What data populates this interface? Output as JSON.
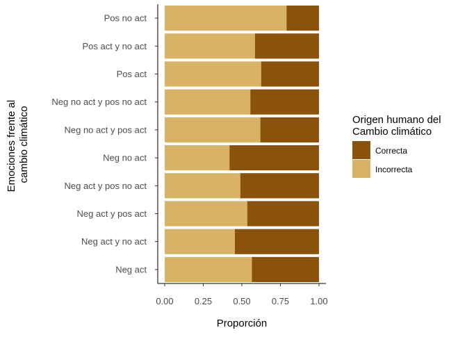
{
  "chart_data": {
    "type": "bar",
    "orientation": "horizontal",
    "stacked": true,
    "categories": [
      "Pos no act",
      "Pos act y no act",
      "Pos act",
      "Neg no act y pos no act",
      "Neg no act y pos act",
      "Neg no act",
      "Neg act y pos no act",
      "Neg act y pos act",
      "Neg act y no act",
      "Neg act"
    ],
    "series": [
      {
        "name": "Incorrecta",
        "color": "#D9B365",
        "values": [
          0.79,
          0.585,
          0.625,
          0.555,
          0.62,
          0.42,
          0.49,
          0.535,
          0.455,
          0.565
        ]
      },
      {
        "name": "Correcta",
        "color": "#8B520B",
        "values": [
          0.21,
          0.415,
          0.375,
          0.445,
          0.38,
          0.58,
          0.51,
          0.465,
          0.545,
          0.435
        ]
      }
    ],
    "xlabel": "Proporción",
    "ylabel": [
      "Emociones frente al",
      "cambio climático"
    ],
    "xlim": [
      0,
      1
    ],
    "xticks": [
      "0.00",
      "0.25",
      "0.50",
      "0.75",
      "1.00"
    ],
    "xtick_values": [
      0,
      0.25,
      0.5,
      0.75,
      1
    ],
    "legend": {
      "title": [
        "Origen humano del",
        "Cambio climático"
      ],
      "placement": "right",
      "entries": [
        {
          "label": "Correcta",
          "color": "#8B520B"
        },
        {
          "label": "Incorrecta",
          "color": "#D9B365"
        }
      ]
    },
    "grid": false
  }
}
